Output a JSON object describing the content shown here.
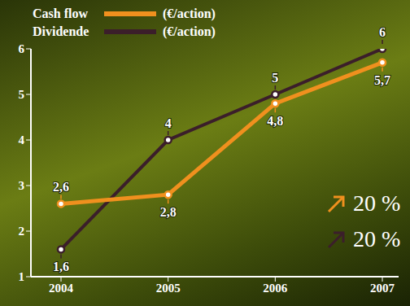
{
  "chart_data": {
    "type": "line",
    "unit_label": "(€/action)",
    "categories": [
      "2004",
      "2005",
      "2006",
      "2007"
    ],
    "series": [
      {
        "name": "Cash flow",
        "color": "#f0901e",
        "marker": "circle",
        "values": [
          2.6,
          2.8,
          4.8,
          5.7
        ],
        "value_labels": [
          "2,6",
          "2,8",
          "4,8",
          "5,7"
        ]
      },
      {
        "name": "Dividende",
        "color": "#3b1e2a",
        "marker": "circle",
        "values": [
          1.6,
          4,
          5,
          6
        ],
        "value_labels": [
          "1,6",
          "4",
          "5",
          "6"
        ]
      }
    ],
    "ylim": [
      1,
      6
    ],
    "yticks": [
      1,
      2,
      3,
      4,
      5,
      6
    ],
    "grid": false,
    "legend": "top-left",
    "data_labels": true,
    "annotations": [
      {
        "text": "20 %",
        "color": "#f0901e"
      },
      {
        "text": "20 %",
        "color": "#3b1e2a"
      }
    ]
  }
}
